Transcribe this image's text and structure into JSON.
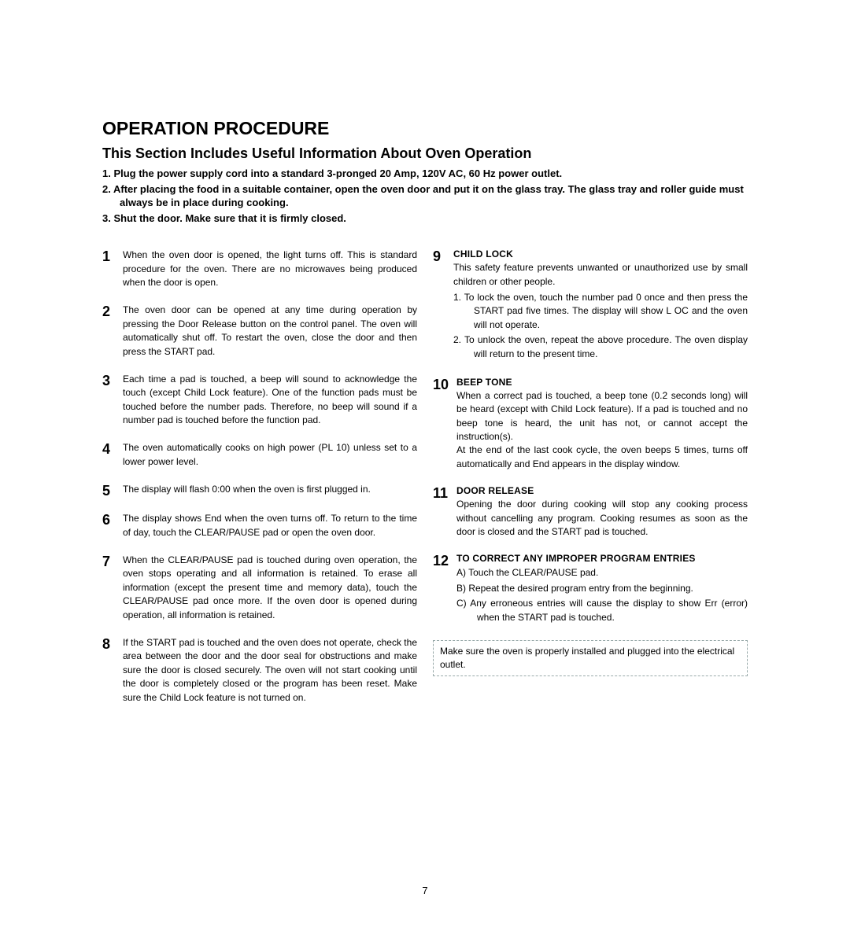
{
  "title": "OPERATION PROCEDURE",
  "subtitle": "This Section Includes Useful Information About Oven Operation",
  "intro": [
    "1.   Plug the power supply cord into a standard 3-pronged 20 Amp, 120V AC, 60 Hz power outlet.",
    "2.   After placing the food in a suitable container, open the oven door and put it on the glass tray. The glass tray and roller guide must always be in place during cooking.",
    "3.   Shut the door. Make sure that it is firmly closed."
  ],
  "left": [
    {
      "n": "1",
      "text": "When the oven door is opened, the light turns off. This is standard procedure for the oven. There are no microwaves being produced when the door is open."
    },
    {
      "n": "2",
      "text": "The oven door can be opened at any time during operation by pressing the Door Release button on the control panel. The oven will automatically shut off. To restart the oven, close the door and then press the START pad."
    },
    {
      "n": "3",
      "text": "Each time a pad is touched, a beep will sound to acknowledge the touch (except Child Lock feature). One of the function pads must be touched before the number pads. Therefore, no beep will sound if a number pad is touched before the function pad."
    },
    {
      "n": "4",
      "text": "The oven automatically cooks on high power (PL 10) unless set to a lower power level."
    },
    {
      "n": "5",
      "text": "The display will flash  0:00  when the oven is first plugged in."
    },
    {
      "n": "6",
      "text": "The display shows  End  when the oven turns off. To return to the time of day, touch the CLEAR/PAUSE pad or open the oven door."
    },
    {
      "n": "7",
      "text": "When the CLEAR/PAUSE pad is touched during oven operation, the oven stops operating and all information is retained. To erase all information (except the present time and memory data), touch the CLEAR/PAUSE pad once more. If the oven door is opened during operation, all information is retained."
    },
    {
      "n": "8",
      "text": "If the START pad is touched and the oven does not operate, check the area between the door and the door seal for obstructions and make sure the door is closed securely. The oven will not start cooking until the door is completely closed or the program has been reset. Make sure the Child Lock feature is not turned on."
    }
  ],
  "right": [
    {
      "n": "9",
      "heading": "CHILD LOCK",
      "text": "This safety feature prevents unwanted or unauthorized use by small children or other people.",
      "sub": [
        "1.    To lock the oven, touch the number pad  0  once and then press the START pad five times. The display will show  L OC  and the oven will not operate.",
        "2.    To unlock the oven, repeat the above procedure. The oven display will return to the present time."
      ]
    },
    {
      "n": "10",
      "heading": "BEEP TONE",
      "text": "When a correct pad is touched, a beep tone (0.2 seconds long) will be heard (except with Child Lock feature). If a pad is touched and no beep tone is heard, the unit has not, or cannot accept the instruction(s).",
      "text2": "At the end of the last cook cycle, the oven beeps 5 times, turns off automatically and  End  appears in the display window."
    },
    {
      "n": "11",
      "heading": "DOOR RELEASE",
      "text": "Opening the door during cooking will stop any cooking process without cancelling any program. Cooking resumes as soon as the door is closed and the START pad is touched."
    },
    {
      "n": "12",
      "heading": "TO CORRECT ANY IMPROPER PROGRAM ENTRIES",
      "sub": [
        "A)    Touch the CLEAR/PAUSE pad.",
        "B)    Repeat the desired program entry from the beginning.",
        "C)    Any erroneous entries will cause the display to show  Err  (error) when the START pad is touched."
      ]
    }
  ],
  "note": "Make sure the oven is properly installed and plugged into the electrical outlet.",
  "pageNumber": "7"
}
